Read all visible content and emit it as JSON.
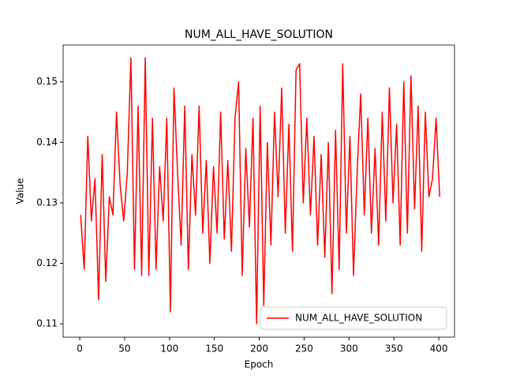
{
  "chart_data": {
    "type": "line",
    "title": "NUM_ALL_HAVE_SOLUTION",
    "x_label": "Epoch",
    "y_label": "Value",
    "x": [
      1,
      5,
      9,
      13,
      17,
      21,
      25,
      29,
      33,
      37,
      41,
      45,
      49,
      53,
      57,
      61,
      65,
      69,
      73,
      77,
      81,
      85,
      89,
      93,
      97,
      101,
      105,
      109,
      113,
      117,
      121,
      125,
      129,
      133,
      137,
      141,
      145,
      149,
      153,
      157,
      161,
      165,
      169,
      173,
      177,
      181,
      185,
      189,
      193,
      197,
      201,
      205,
      209,
      213,
      217,
      221,
      225,
      229,
      233,
      237,
      241,
      245,
      249,
      253,
      257,
      261,
      265,
      269,
      273,
      277,
      281,
      285,
      289,
      293,
      297,
      301,
      305,
      309,
      313,
      317,
      321,
      325,
      329,
      333,
      337,
      341,
      345,
      349,
      353,
      357,
      361,
      365,
      369,
      373,
      377,
      381,
      385,
      389,
      393,
      397,
      401
    ],
    "series": [
      {
        "name": "NUM_ALL_HAVE_SOLUTION",
        "color": "#ff0000",
        "values": [
          0.128,
          0.119,
          0.141,
          0.127,
          0.134,
          0.114,
          0.138,
          0.117,
          0.131,
          0.128,
          0.145,
          0.133,
          0.127,
          0.135,
          0.154,
          0.119,
          0.146,
          0.118,
          0.154,
          0.118,
          0.144,
          0.119,
          0.136,
          0.127,
          0.144,
          0.112,
          0.149,
          0.135,
          0.123,
          0.146,
          0.119,
          0.138,
          0.128,
          0.146,
          0.125,
          0.137,
          0.12,
          0.136,
          0.125,
          0.145,
          0.124,
          0.137,
          0.122,
          0.144,
          0.15,
          0.118,
          0.139,
          0.126,
          0.144,
          0.11,
          0.146,
          0.113,
          0.14,
          0.123,
          0.145,
          0.131,
          0.149,
          0.125,
          0.143,
          0.122,
          0.152,
          0.153,
          0.13,
          0.144,
          0.128,
          0.141,
          0.123,
          0.138,
          0.121,
          0.14,
          0.115,
          0.142,
          0.119,
          0.153,
          0.125,
          0.141,
          0.118,
          0.135,
          0.148,
          0.128,
          0.144,
          0.125,
          0.139,
          0.123,
          0.145,
          0.127,
          0.149,
          0.13,
          0.143,
          0.123,
          0.15,
          0.125,
          0.151,
          0.129,
          0.146,
          0.122,
          0.145,
          0.131,
          0.134,
          0.144,
          0.131
        ]
      }
    ],
    "xlim": [
      -18.5,
      417.5
    ],
    "ylim": [
      0.1078,
      0.1561
    ],
    "xticks": [
      0,
      50,
      100,
      150,
      200,
      250,
      300,
      350,
      400
    ],
    "yticks": [
      0.11,
      0.12,
      0.13,
      0.14,
      0.15
    ],
    "legend": "lower right"
  }
}
